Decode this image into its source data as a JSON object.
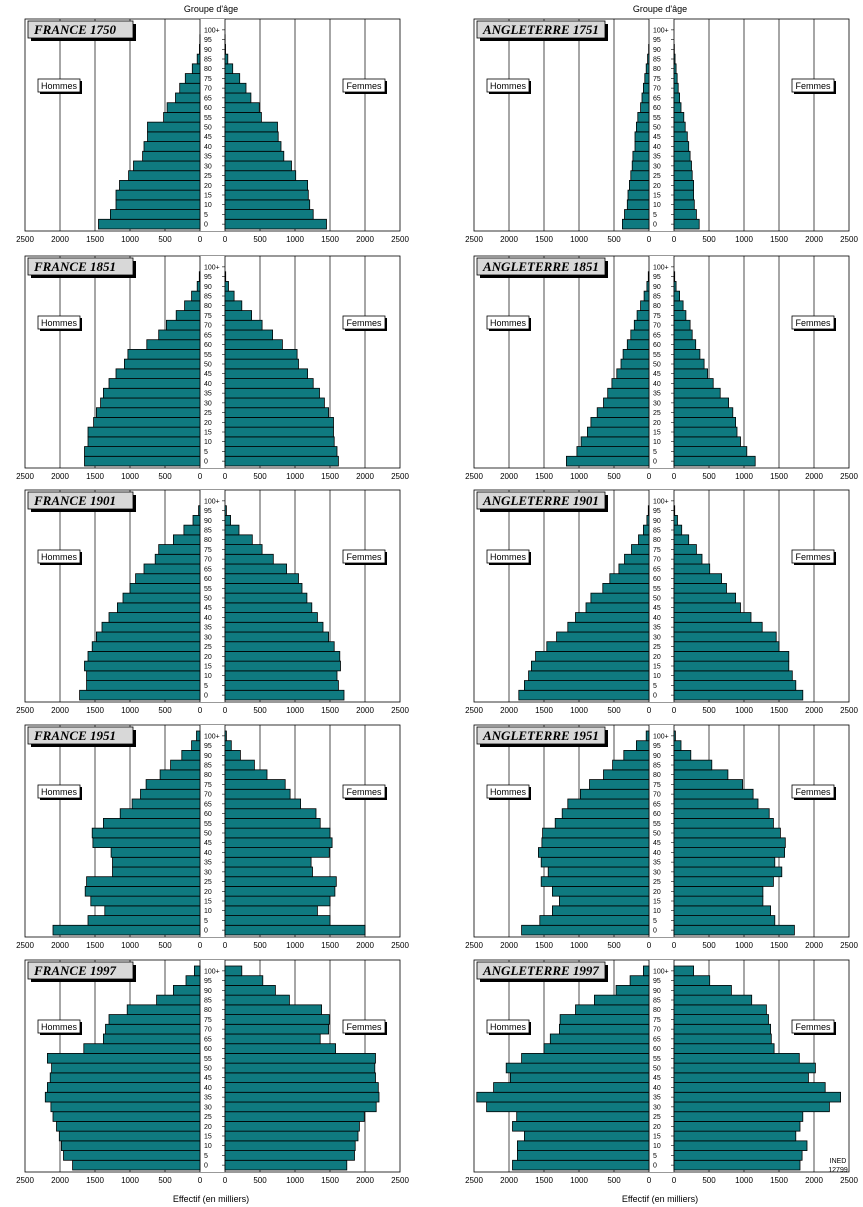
{
  "header": {
    "age_group_label": "Groupe d'âge"
  },
  "footer": {
    "x_axis_label": "Effectif (en milliers)"
  },
  "credit": {
    "line1": "INED",
    "line2": "12799"
  },
  "sex_labels": {
    "men": "Hommes",
    "women": "Femmes"
  },
  "age_ticks": [
    "0",
    "5",
    "10",
    "15",
    "20",
    "25",
    "30",
    "35",
    "40",
    "45",
    "50",
    "55",
    "60",
    "65",
    "70",
    "75",
    "80",
    "85",
    "90",
    "95",
    "100+"
  ],
  "x_ticks": [
    "2500",
    "2000",
    "1500",
    "1000",
    "500",
    "0"
  ],
  "colors": {
    "bar_fill": "#0f7a80",
    "title_box": "#d8d8d8"
  },
  "chart_data": [
    {
      "type": "bar",
      "orientation": "horizontal-pyramid",
      "title": "FRANCE 1750",
      "xlim": [
        0,
        2500
      ],
      "men": [
        1450,
        1280,
        1200,
        1200,
        1150,
        1020,
        950,
        820,
        800,
        750,
        750,
        520,
        470,
        350,
        290,
        210,
        110,
        40,
        8,
        2,
        0
      ],
      "women": [
        1450,
        1260,
        1210,
        1190,
        1180,
        1010,
        950,
        840,
        800,
        760,
        750,
        520,
        490,
        370,
        300,
        210,
        110,
        40,
        8,
        2,
        0
      ]
    },
    {
      "type": "bar",
      "orientation": "horizontal-pyramid",
      "title": "ANGLETERRE 1751",
      "xlim": [
        0,
        2500
      ],
      "men": [
        380,
        350,
        310,
        300,
        280,
        260,
        240,
        230,
        200,
        200,
        180,
        160,
        120,
        100,
        80,
        60,
        40,
        20,
        5,
        0,
        0
      ],
      "women": [
        360,
        320,
        290,
        280,
        280,
        260,
        250,
        230,
        210,
        190,
        160,
        140,
        100,
        80,
        60,
        45,
        30,
        15,
        5,
        0,
        0
      ]
    },
    {
      "type": "bar",
      "orientation": "horizontal-pyramid",
      "title": "FRANCE 1851",
      "xlim": [
        0,
        2500
      ],
      "men": [
        1650,
        1650,
        1600,
        1600,
        1520,
        1480,
        1420,
        1380,
        1300,
        1200,
        1080,
        1030,
        760,
        590,
        480,
        340,
        220,
        120,
        40,
        10,
        0
      ],
      "women": [
        1620,
        1600,
        1560,
        1550,
        1550,
        1480,
        1420,
        1350,
        1260,
        1180,
        1050,
        1030,
        820,
        680,
        530,
        380,
        240,
        130,
        50,
        10,
        0
      ]
    },
    {
      "type": "bar",
      "orientation": "horizontal-pyramid",
      "title": "ANGLETERRE 1851",
      "xlim": [
        0,
        2500
      ],
      "men": [
        1180,
        1030,
        970,
        880,
        830,
        740,
        650,
        590,
        530,
        460,
        400,
        370,
        310,
        260,
        210,
        170,
        120,
        70,
        30,
        10,
        0
      ],
      "women": [
        1160,
        1040,
        950,
        900,
        880,
        840,
        780,
        660,
        560,
        480,
        430,
        370,
        310,
        260,
        230,
        170,
        130,
        80,
        30,
        10,
        0
      ]
    },
    {
      "type": "bar",
      "orientation": "horizontal-pyramid",
      "title": "FRANCE 1901",
      "xlim": [
        0,
        2500
      ],
      "men": [
        1720,
        1620,
        1620,
        1650,
        1600,
        1540,
        1480,
        1400,
        1300,
        1180,
        1100,
        1000,
        920,
        800,
        640,
        590,
        380,
        230,
        100,
        20,
        0
      ],
      "women": [
        1700,
        1620,
        1600,
        1650,
        1640,
        1560,
        1480,
        1400,
        1320,
        1240,
        1170,
        1100,
        1050,
        880,
        690,
        530,
        390,
        200,
        80,
        20,
        0
      ]
    },
    {
      "type": "bar",
      "orientation": "horizontal-pyramid",
      "title": "ANGLETERRE 1901",
      "xlim": [
        0,
        2500
      ],
      "men": [
        1860,
        1780,
        1720,
        1680,
        1620,
        1460,
        1320,
        1160,
        1050,
        900,
        830,
        660,
        560,
        430,
        350,
        250,
        150,
        80,
        30,
        10,
        0
      ],
      "women": [
        1840,
        1740,
        1690,
        1640,
        1640,
        1500,
        1460,
        1260,
        1100,
        950,
        880,
        750,
        680,
        510,
        400,
        320,
        210,
        110,
        50,
        10,
        0
      ]
    },
    {
      "type": "bar",
      "orientation": "horizontal-pyramid",
      "title": "FRANCE 1951",
      "xlim": [
        0,
        2500
      ],
      "men": [
        2100,
        1600,
        1360,
        1560,
        1640,
        1620,
        1250,
        1250,
        1270,
        1530,
        1540,
        1380,
        1140,
        970,
        850,
        770,
        570,
        420,
        260,
        120,
        50
      ],
      "women": [
        2000,
        1500,
        1320,
        1500,
        1570,
        1590,
        1250,
        1230,
        1490,
        1530,
        1500,
        1360,
        1300,
        1080,
        930,
        860,
        600,
        420,
        220,
        90,
        20
      ]
    },
    {
      "type": "bar",
      "orientation": "horizontal-pyramid",
      "title": "ANGLETERRE 1951",
      "xlim": [
        0,
        2500
      ],
      "men": [
        1820,
        1560,
        1380,
        1280,
        1380,
        1540,
        1440,
        1540,
        1580,
        1530,
        1520,
        1340,
        1240,
        1160,
        980,
        850,
        650,
        520,
        360,
        180,
        40
      ],
      "women": [
        1720,
        1440,
        1380,
        1270,
        1270,
        1420,
        1540,
        1440,
        1580,
        1590,
        1520,
        1420,
        1360,
        1200,
        1130,
        980,
        770,
        540,
        240,
        100,
        20
      ]
    },
    {
      "type": "bar",
      "orientation": "horizontal-pyramid",
      "title": "FRANCE 1997",
      "xlim": [
        0,
        2500
      ],
      "men": [
        1820,
        1950,
        1980,
        2010,
        2050,
        2100,
        2130,
        2210,
        2180,
        2140,
        2120,
        2180,
        1660,
        1380,
        1350,
        1300,
        1040,
        620,
        380,
        200,
        80
      ],
      "women": [
        1740,
        1850,
        1860,
        1900,
        1920,
        1990,
        2160,
        2200,
        2190,
        2150,
        2140,
        2150,
        1580,
        1360,
        1480,
        1490,
        1380,
        920,
        720,
        540,
        240
      ]
    },
    {
      "type": "bar",
      "orientation": "horizontal-pyramid",
      "title": "ANGLETERRE 1997",
      "xlim": [
        0,
        2500
      ],
      "men": [
        1950,
        1880,
        1880,
        1780,
        1950,
        1890,
        2320,
        2460,
        2220,
        1980,
        2040,
        1820,
        1500,
        1410,
        1280,
        1270,
        1050,
        780,
        470,
        270,
        80
      ],
      "women": [
        1800,
        1830,
        1900,
        1740,
        1800,
        1840,
        2220,
        2380,
        2160,
        1920,
        2020,
        1790,
        1430,
        1390,
        1380,
        1350,
        1320,
        1110,
        820,
        510,
        280
      ]
    }
  ]
}
